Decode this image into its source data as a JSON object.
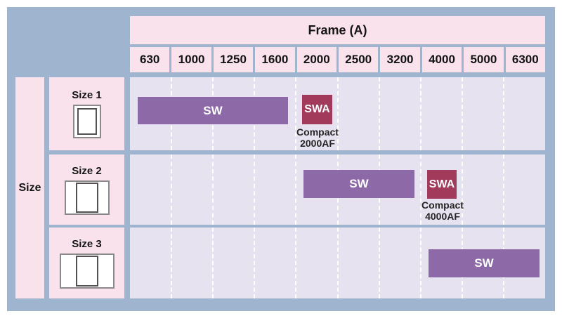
{
  "header": {
    "title": "Frame (A)"
  },
  "columns": [
    "630",
    "1000",
    "1250",
    "1600",
    "2000",
    "2500",
    "3200",
    "4000",
    "5000",
    "6300"
  ],
  "size_axis": {
    "label": "Size"
  },
  "rows": [
    {
      "label": "Size 1",
      "sw": {
        "label": "SW"
      },
      "swa": {
        "label": "SWA",
        "caption": "Compact 2000AF"
      }
    },
    {
      "label": "Size 2",
      "sw": {
        "label": "SW"
      },
      "swa": {
        "label": "SWA",
        "caption": "Compact 4000AF"
      }
    },
    {
      "label": "Size 3",
      "sw": {
        "label": "SW"
      }
    }
  ],
  "colors": {
    "panel": "#9fb4ce",
    "pink": "#f9e2eb",
    "lavender": "#e7e2ef",
    "purple": "#8d69a7",
    "maroon": "#a23a5c"
  },
  "chart_data": {
    "type": "table",
    "title": "Frame (A)",
    "x_categories": [
      630,
      1000,
      1250,
      1600,
      2000,
      2500,
      3200,
      4000,
      5000,
      6300
    ],
    "y_categories": [
      "Size 1",
      "Size 2",
      "Size 3"
    ],
    "series": [
      {
        "name": "SW",
        "size": "Size 1",
        "frames": [
          630,
          1000,
          1250,
          1600
        ]
      },
      {
        "name": "SWA",
        "size": "Size 1",
        "frames": [
          2000
        ],
        "note": "Compact 2000AF"
      },
      {
        "name": "SW",
        "size": "Size 2",
        "frames": [
          2000,
          2500,
          3200
        ]
      },
      {
        "name": "SWA",
        "size": "Size 2",
        "frames": [
          4000
        ],
        "note": "Compact 4000AF"
      },
      {
        "name": "SW",
        "size": "Size 3",
        "frames": [
          4000,
          5000,
          6300
        ]
      }
    ],
    "legend": "off",
    "grid": "dashed-vertical-column-boundaries"
  }
}
